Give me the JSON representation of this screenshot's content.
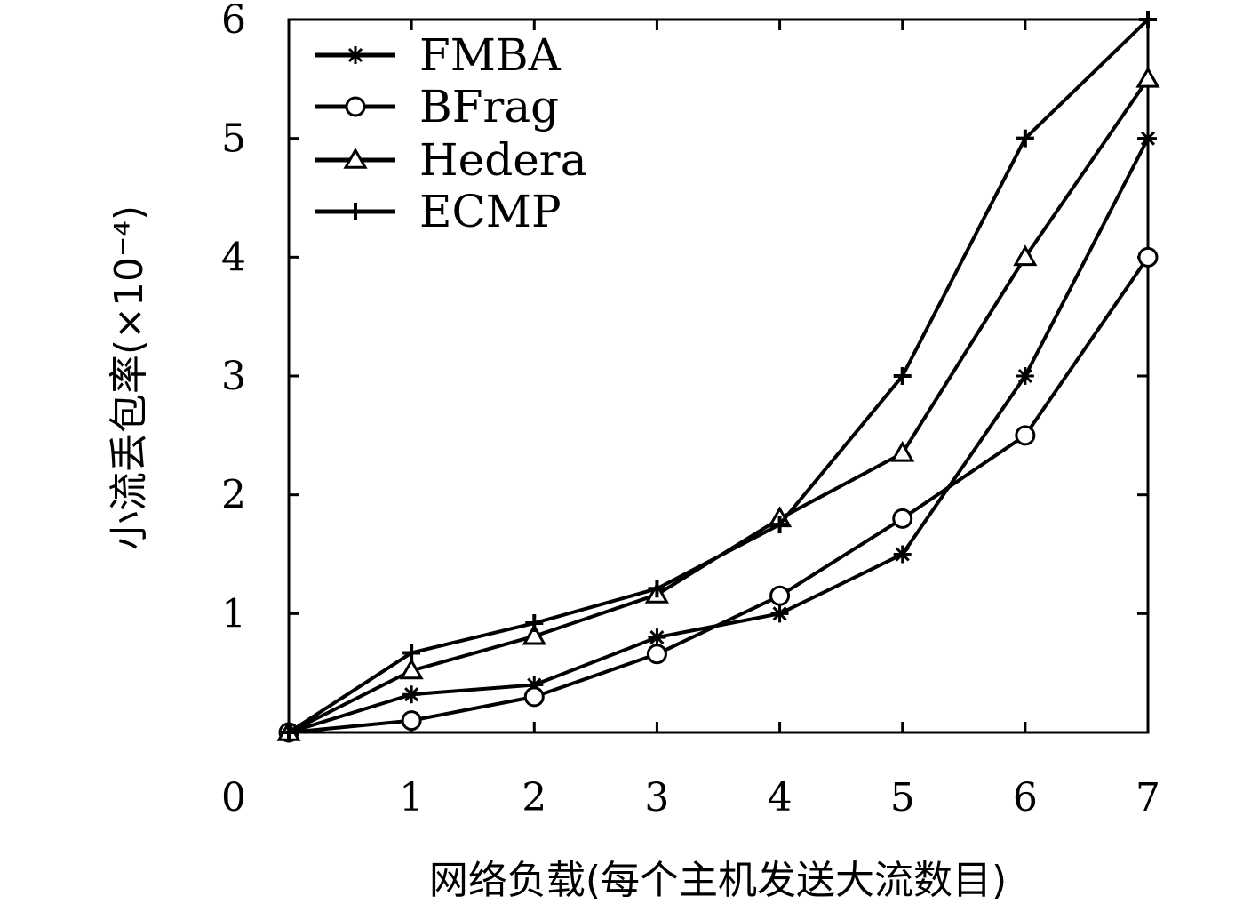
{
  "chart_data": {
    "type": "line",
    "title": "",
    "xlabel": "网络负载(每个主机发送大流数目)",
    "ylabel": "小流丢包率(×10⁻⁴)",
    "x": [
      0,
      1,
      2,
      3,
      4,
      5,
      6,
      7
    ],
    "xlim": [
      0,
      7
    ],
    "ylim": [
      0,
      6
    ],
    "xticks": [
      "0",
      "1",
      "2",
      "3",
      "4",
      "5",
      "6",
      "7"
    ],
    "yticks": [
      "1",
      "2",
      "3",
      "4",
      "5",
      "6"
    ],
    "legend_position": "top-left",
    "grid": false,
    "series": [
      {
        "name": "FMBA",
        "marker": "star",
        "values": [
          0,
          0.32,
          0.4,
          0.8,
          1.0,
          1.5,
          3.0,
          5.0
        ]
      },
      {
        "name": "BFrag",
        "marker": "circle",
        "values": [
          0,
          0.1,
          0.3,
          0.66,
          1.15,
          1.8,
          2.5,
          4.0
        ]
      },
      {
        "name": "Hedera",
        "marker": "triangle",
        "values": [
          0,
          0.52,
          0.81,
          1.16,
          1.8,
          2.35,
          4.0,
          5.5
        ]
      },
      {
        "name": "ECMP",
        "marker": "plus",
        "values": [
          0,
          0.67,
          0.92,
          1.21,
          1.75,
          3.0,
          5.0,
          6.0
        ]
      }
    ]
  }
}
